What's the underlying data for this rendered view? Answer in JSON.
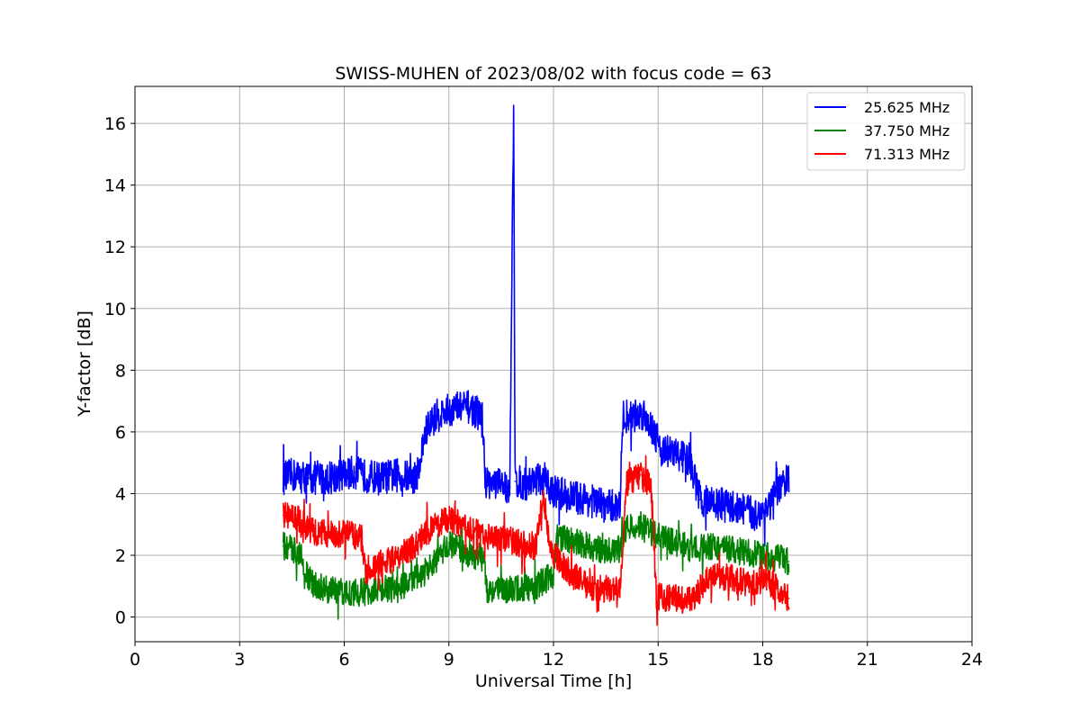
{
  "chart_data": {
    "type": "line",
    "title": "SWISS-MUHEN of 2023/08/02 with focus code = 63",
    "xlabel": "Universal Time [h]",
    "ylabel": "Y-factor [dB]",
    "xlim": [
      0,
      24
    ],
    "ylim": [
      -0.8,
      17.2
    ],
    "xticks": [
      0,
      3,
      6,
      9,
      12,
      15,
      18,
      21,
      24
    ],
    "yticks": [
      0,
      2,
      4,
      6,
      8,
      10,
      12,
      14,
      16
    ],
    "grid": true,
    "legend_position": "top-right",
    "series": [
      {
        "name": "25.625 MHz",
        "color": "#0000ff",
        "x": [
          4.25,
          4.5,
          5.0,
          5.5,
          5.85,
          6.0,
          6.3,
          6.5,
          7.0,
          7.5,
          8.0,
          8.15,
          8.3,
          8.6,
          9.0,
          9.3,
          9.6,
          9.95,
          10.05,
          10.4,
          10.75,
          10.82,
          10.86,
          10.9,
          11.2,
          11.5,
          12.0,
          12.5,
          13.0,
          13.5,
          13.9,
          14.0,
          14.3,
          14.6,
          14.9,
          15.1,
          15.5,
          15.9,
          16.2,
          16.6,
          17.0,
          17.5,
          17.75,
          17.95,
          18.2,
          18.5,
          18.75
        ],
        "y": [
          4.5,
          4.6,
          4.5,
          4.5,
          4.6,
          4.6,
          4.7,
          4.6,
          4.5,
          4.6,
          4.5,
          4.8,
          5.9,
          6.5,
          6.7,
          6.8,
          6.8,
          6.5,
          4.4,
          4.3,
          4.2,
          12.5,
          16.3,
          4.4,
          4.3,
          4.5,
          4.1,
          3.9,
          3.8,
          3.6,
          3.6,
          6.5,
          6.5,
          6.6,
          6.0,
          5.4,
          5.3,
          5.1,
          3.8,
          3.7,
          3.6,
          3.5,
          3.3,
          3.4,
          3.6,
          4.2,
          4.5
        ]
      },
      {
        "name": "37.750 MHz",
        "color": "#008000",
        "x": [
          4.25,
          4.5,
          4.75,
          5.0,
          5.5,
          6.0,
          6.5,
          7.0,
          7.5,
          8.0,
          8.5,
          9.0,
          9.5,
          10.0,
          10.1,
          10.5,
          11.0,
          11.5,
          12.0,
          12.1,
          12.5,
          13.0,
          13.5,
          13.9,
          14.1,
          14.5,
          15.0,
          15.5,
          16.0,
          16.5,
          17.0,
          17.5,
          18.0,
          18.5,
          18.75
        ],
        "y": [
          2.3,
          2.2,
          2.1,
          1.1,
          0.9,
          0.8,
          0.8,
          0.9,
          0.9,
          1.2,
          1.6,
          2.4,
          2.1,
          1.9,
          0.9,
          0.9,
          0.9,
          1.0,
          1.4,
          2.6,
          2.5,
          2.3,
          2.1,
          2.2,
          2.9,
          3.0,
          2.6,
          2.4,
          2.2,
          2.3,
          2.2,
          2.1,
          2.0,
          1.9,
          1.8
        ]
      },
      {
        "name": "71.313 MHz",
        "color": "#ff0000",
        "x": [
          4.25,
          4.5,
          4.75,
          5.0,
          5.5,
          6.0,
          6.5,
          6.6,
          7.0,
          7.5,
          8.0,
          8.5,
          9.0,
          9.5,
          10.0,
          10.5,
          11.0,
          11.5,
          11.7,
          11.9,
          12.5,
          13.0,
          13.5,
          13.9,
          14.1,
          14.5,
          14.8,
          14.95,
          15.2,
          15.5,
          16.0,
          16.3,
          16.5,
          17.0,
          17.5,
          18.0,
          18.5,
          18.75
        ],
        "y": [
          3.3,
          3.3,
          3.1,
          2.8,
          2.7,
          2.7,
          2.6,
          1.5,
          1.7,
          1.9,
          2.3,
          2.9,
          3.2,
          2.9,
          2.6,
          2.6,
          2.4,
          2.3,
          4.1,
          2.2,
          1.4,
          1.0,
          0.9,
          0.9,
          4.3,
          4.6,
          4.2,
          0.7,
          0.6,
          0.6,
          0.5,
          1.1,
          1.3,
          1.3,
          1.1,
          1.2,
          0.9,
          0.6
        ]
      }
    ]
  }
}
